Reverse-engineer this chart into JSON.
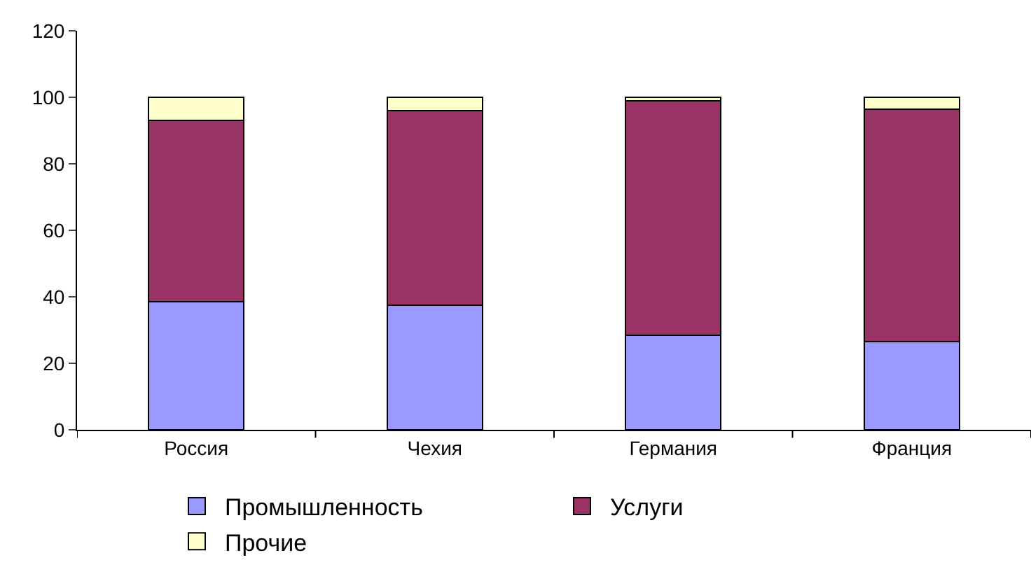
{
  "chart_data": {
    "type": "bar",
    "stacked": true,
    "categories": [
      "Россия",
      "Чехия",
      "Германия",
      "Франция"
    ],
    "series": [
      {
        "name": "Промышленность",
        "color": "#9999ff",
        "values": [
          38.5,
          37.5,
          28.5,
          26.5
        ]
      },
      {
        "name": "Услуги",
        "color": "#993366",
        "values": [
          54.5,
          58.5,
          70.5,
          70
        ]
      },
      {
        "name": "Прочие",
        "color": "#ffffcc",
        "values": [
          7,
          4,
          1,
          3.5
        ]
      }
    ],
    "ylim": [
      0,
      120
    ],
    "yticks": [
      0,
      20,
      40,
      60,
      80,
      100,
      120
    ],
    "grid": false,
    "legend": "bottom"
  }
}
